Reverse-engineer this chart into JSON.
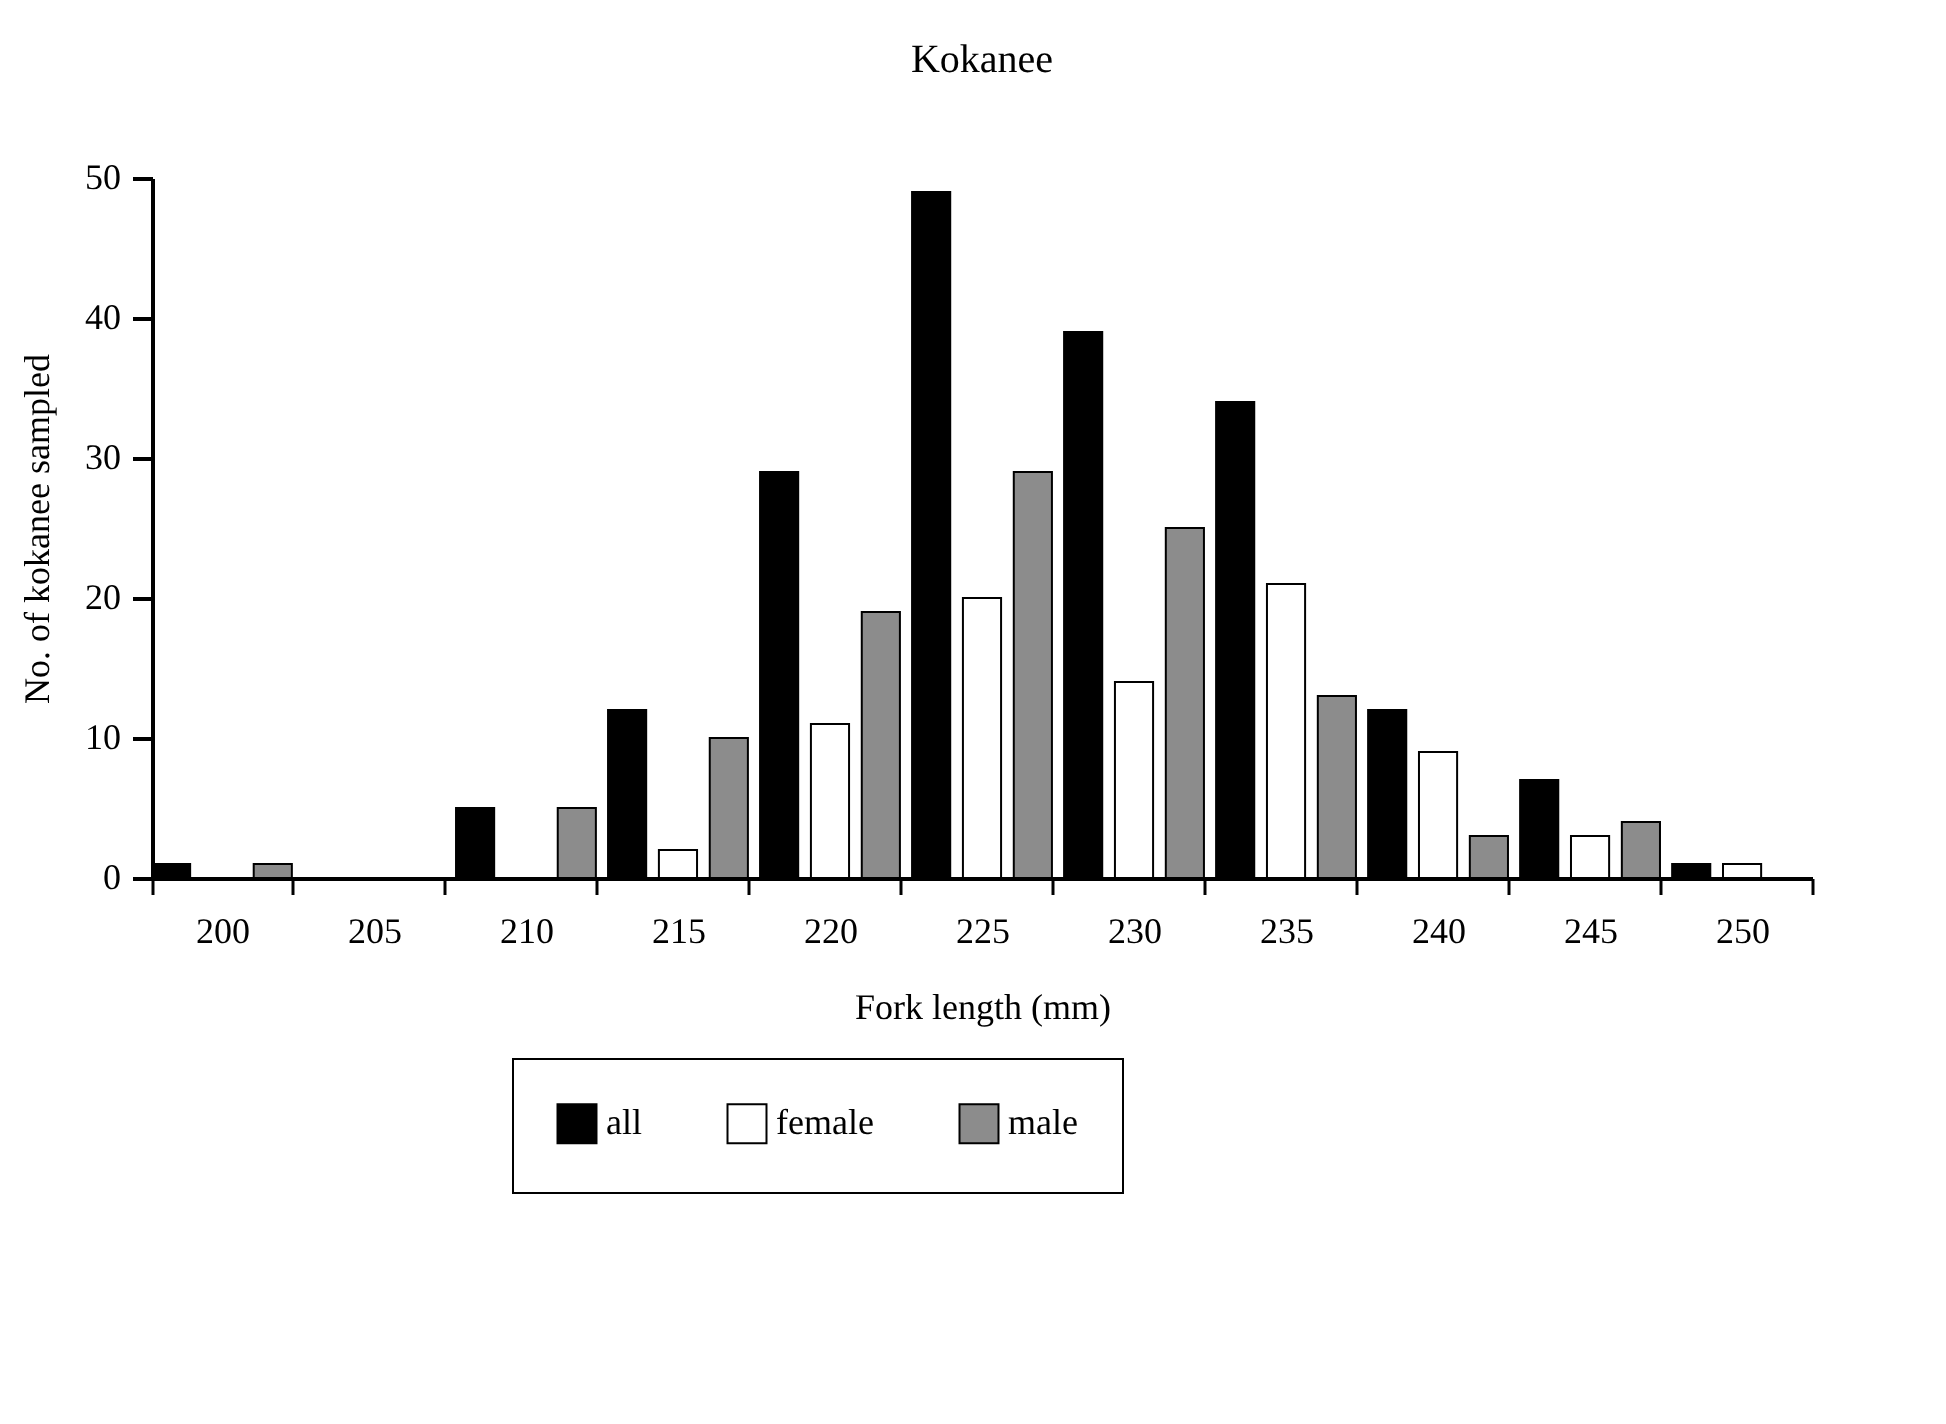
{
  "chart_data": {
    "type": "bar",
    "title": "Kokanee",
    "xlabel": "Fork length (mm)",
    "ylabel": "No. of kokanee sampled",
    "categories": [
      "200",
      "205",
      "210",
      "215",
      "220",
      "225",
      "230",
      "235",
      "240",
      "245",
      "250"
    ],
    "series": [
      {
        "name": "all",
        "color": "#000000",
        "values": [
          1,
          0,
          5,
          12,
          29,
          49,
          39,
          34,
          12,
          7,
          1
        ]
      },
      {
        "name": "female",
        "color": "#ffffff",
        "values": [
          0,
          0,
          0,
          2,
          11,
          20,
          14,
          21,
          9,
          3,
          1
        ]
      },
      {
        "name": "male",
        "color": "#8c8c8c",
        "values": [
          1,
          0,
          5,
          10,
          19,
          29,
          25,
          13,
          3,
          4,
          0
        ]
      }
    ],
    "ylim": [
      0,
      50
    ],
    "yticks": [
      0,
      10,
      20,
      30,
      40,
      50
    ],
    "grid": false,
    "legend": "bottom"
  }
}
